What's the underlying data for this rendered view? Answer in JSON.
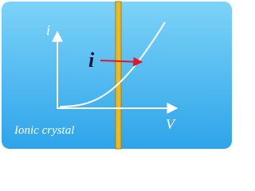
{
  "axes": {
    "y_label": "i",
    "x_label": "V"
  },
  "marker": {
    "label": "i"
  },
  "caption": "Ionic crystal"
}
